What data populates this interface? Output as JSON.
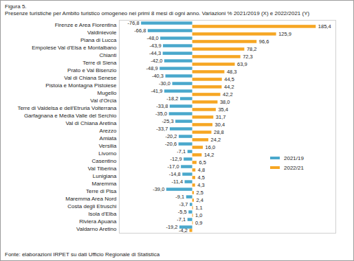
{
  "chart_data": {
    "type": "bar",
    "orientation": "horizontal",
    "title": "Figura 5.",
    "subtitle": "Presenze turistiche per Ambito turistico omogeneo nei primi 8 mesi di ogni anno. Variazioni % 2021/2019 (X) e 2022/2021 (Y)",
    "caption": "Fonte: elaborazioni IRPET su dati Ufficio Regionale di Statistica",
    "categories": [
      "Firenze e Area Fiorentina",
      "Valdinievole",
      "Piana di Lucca",
      "Empolese Val d'Elsa e Montalbano",
      "Chianti",
      "Terre di Siena",
      "Prato e Val Bisenzio",
      "Val di Chiana Senese",
      "Pistoia e Montagna Pistoiese",
      "Mugello",
      "Val d'Orcia",
      "Terre di Valdelsa e dell'Etruria Volterrana",
      "Garfagnana e Media Valle del Serchio",
      "Val di Chiana Aretina",
      "Arezzo",
      "Amiata",
      "Versilia",
      "Livorno",
      "Casentino",
      "Val Tiberina",
      "Lunigiana",
      "Maremma",
      "Terre di Pisa",
      "Maremma Area Nord",
      "Costa degli Etruschi",
      "Isola d'Elba",
      "Riviera Apuana",
      "Valdarno Aretino"
    ],
    "series": [
      {
        "name": "2021/19",
        "color": "#4aa8cc",
        "values": [
          -76.8,
          -66.8,
          -48.0,
          -43.9,
          -44.3,
          -42.0,
          -48.9,
          -40.3,
          -30.0,
          -41.9,
          -18.2,
          -33.8,
          -35.0,
          -25.3,
          -33.7,
          -20.2,
          -20.6,
          -7.1,
          -12.9,
          -17.0,
          -14.8,
          -11.4,
          -39.0,
          -9.1,
          -3.7,
          -5.5,
          -7.1,
          -19.2
        ],
        "value_labels": [
          "-76,8",
          "-66,8",
          "-48,0",
          "-43,9",
          "-44,3",
          "-42,0",
          "-48,9",
          "-40,3",
          "-30,0",
          "-41,9",
          "-18,2",
          "-33,8",
          "-35,0",
          "-25,3",
          "-33,7",
          "-20,2",
          "-20,6",
          "-7,1",
          "-12,9",
          "-17,0",
          "-14,8",
          "-11,4",
          "-39,0",
          "-9,1",
          "-3,7",
          "-5,5",
          "-7,1",
          "-19,2"
        ]
      },
      {
        "name": "2022/21",
        "color": "#f6a623",
        "values": [
          185.4,
          125.9,
          96.6,
          78.2,
          72.3,
          63.9,
          48.3,
          44.5,
          44.2,
          42.2,
          38.0,
          35.4,
          31.7,
          30.4,
          28.8,
          24.2,
          16.0,
          14.2,
          6.5,
          4.8,
          4.5,
          4.3,
          2.5,
          2.4,
          1.1,
          1.0,
          0.9,
          -4.2
        ],
        "value_labels": [
          "185,4",
          "125,9",
          "96,6",
          "78,2",
          "72,3",
          "63,9",
          "48,3",
          "44,5",
          "44,2",
          "42,2",
          "38,0",
          "35,4",
          "31,7",
          "30,4",
          "28,8",
          "24,2",
          "16,0",
          "14,2",
          "6,5",
          "4,8",
          "4,5",
          "4,3",
          "2,5",
          "2,4",
          "1,1",
          "1,0",
          "0,9",
          "-4,2"
        ]
      }
    ],
    "xlim": [
      -110,
      215
    ],
    "data_labels": true,
    "tick_labels": "y",
    "grid": false,
    "legend": "right"
  }
}
